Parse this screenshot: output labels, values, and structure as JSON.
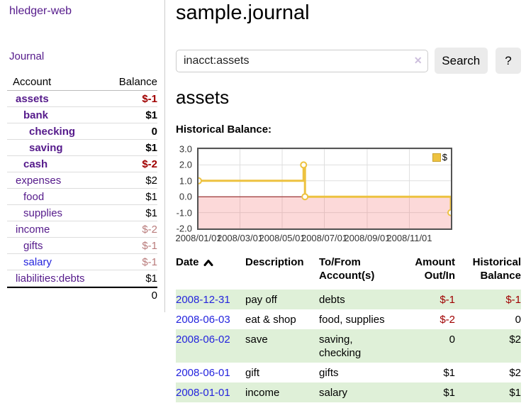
{
  "brand": "hledger-web",
  "nav": {
    "journal": "Journal"
  },
  "sidebar_table": {
    "headers": {
      "account": "Account",
      "balance": "Balance"
    },
    "rows": [
      {
        "name": "assets",
        "depth": 1,
        "bold": true,
        "balance": "$-1",
        "balance_style": "negative"
      },
      {
        "name": "bank",
        "depth": 2,
        "bold": true,
        "balance": "$1",
        "balance_style": "normal"
      },
      {
        "name": "checking",
        "depth": 3,
        "bold": true,
        "balance": "0",
        "balance_style": "normal"
      },
      {
        "name": "saving",
        "depth": 3,
        "bold": true,
        "balance": "$1",
        "balance_style": "normal"
      },
      {
        "name": "cash",
        "depth": 2,
        "bold": true,
        "balance": "$-2",
        "balance_style": "negative"
      },
      {
        "name": "expenses",
        "depth": 1,
        "bold": false,
        "balance": "$2",
        "balance_style": "normal"
      },
      {
        "name": "food",
        "depth": 2,
        "bold": false,
        "balance": "$1",
        "balance_style": "normal"
      },
      {
        "name": "supplies",
        "depth": 2,
        "bold": false,
        "balance": "$1",
        "balance_style": "normal"
      },
      {
        "name": "income",
        "depth": 1,
        "bold": false,
        "balance": "$-2",
        "balance_style": "muted-negative"
      },
      {
        "name": "gifts",
        "depth": 2,
        "bold": false,
        "balance": "$-1",
        "balance_style": "muted-negative"
      },
      {
        "name": "salary",
        "depth": 2,
        "bold": false,
        "balance": "$-1",
        "balance_style": "muted-negative"
      },
      {
        "name": "liabilities:debts",
        "depth": 1,
        "bold": false,
        "balance": "$1",
        "balance_style": "normal"
      }
    ],
    "total": "0"
  },
  "header": {
    "title": "sample.journal"
  },
  "search": {
    "value": "inacct:assets",
    "clear_icon": "✕",
    "button_label": "Search",
    "help_label": "?"
  },
  "account_page": {
    "title": "assets",
    "chart_heading": "Historical Balance:"
  },
  "chart_data": {
    "type": "line",
    "step": true,
    "title": "Historical Balance",
    "x_range": [
      "2008-01-01",
      "2008-12-31"
    ],
    "ylim": [
      -2,
      3
    ],
    "xticks": [
      "2008/01/01",
      "2008/03/01",
      "2008/05/01",
      "2008/07/01",
      "2008/09/01",
      "2008/11/01"
    ],
    "yticks": [
      3.0,
      2.0,
      1.0,
      0.0,
      -1.0,
      -2.0
    ],
    "series": [
      {
        "name": "$",
        "color": "#edc240",
        "points": [
          [
            "2008-01-01",
            1
          ],
          [
            "2008-06-01",
            2
          ],
          [
            "2008-06-03",
            0
          ],
          [
            "2008-12-31",
            -1
          ]
        ]
      }
    ],
    "legend": {
      "label": "$",
      "position": "top-right"
    },
    "grid": true,
    "negative_region_shaded": true,
    "zero_line_color": "#8b1010",
    "negative_region_color": "rgba(243,105,105,0.25)"
  },
  "register_table": {
    "headers": {
      "date": "Date",
      "description": "Description",
      "tofrom_line1": "To/From",
      "tofrom_line2": "Account(s)",
      "amount_line1": "Amount",
      "amount_line2": "Out/In",
      "historical_line1": "Historical",
      "historical_line2": "Balance"
    },
    "rows": [
      {
        "date": "2008-12-31",
        "description": "pay off",
        "accounts": "debts",
        "amount": "$-1",
        "balance": "$-1"
      },
      {
        "date": "2008-06-03",
        "description": "eat & shop",
        "accounts": "food, supplies",
        "amount": "$-2",
        "balance": "0"
      },
      {
        "date": "2008-06-02",
        "description": "save",
        "accounts": "saving, checking",
        "amount": "0",
        "balance": "$2"
      },
      {
        "date": "2008-06-01",
        "description": "gift",
        "accounts": "gifts",
        "amount": "$1",
        "balance": "$2"
      },
      {
        "date": "2008-01-01",
        "description": "income",
        "accounts": "salary",
        "amount": "$1",
        "balance": "$1"
      }
    ]
  },
  "colors": {
    "link_purple": "#551a8b",
    "link_blue": "#2424dd",
    "negative_red": "#a00000",
    "muted_negative": "#b97b7b",
    "row_green": "#dff0d8",
    "chart_series_gold": "#edc240",
    "chart_border_gray": "#545454"
  }
}
